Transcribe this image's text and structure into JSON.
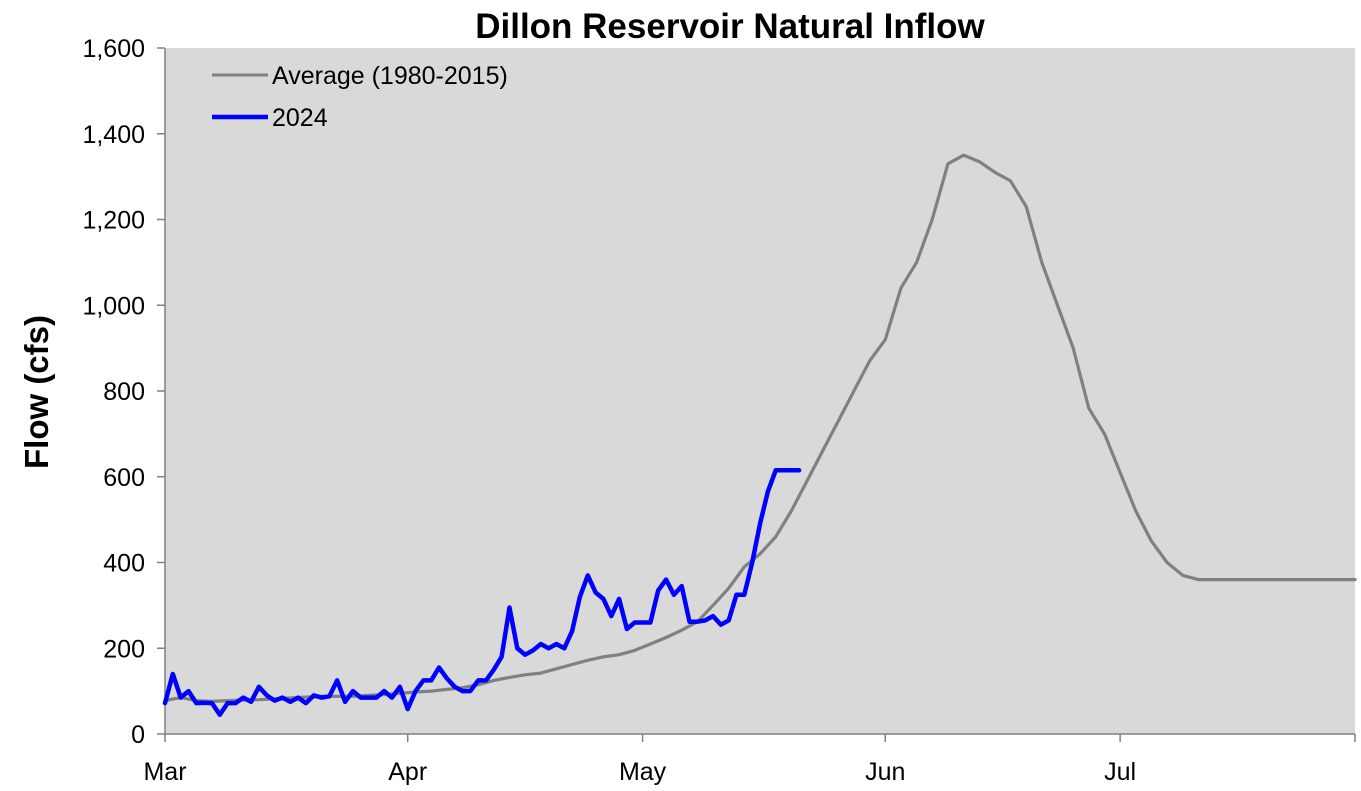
{
  "chart_data": {
    "type": "line",
    "title": "Dillon Reservoir Natural Inflow",
    "xlabel": "",
    "ylabel": "Flow (cfs)",
    "ylim": [
      0,
      1600
    ],
    "xlim": [
      "Mar 1",
      "Jul 31"
    ],
    "y_ticks": [
      "0",
      "200",
      "400",
      "600",
      "800",
      "1,000",
      "1,200",
      "1,400",
      "1,600"
    ],
    "x_ticks": [
      "Mar",
      "Apr",
      "May",
      "Jun",
      "Jul"
    ],
    "grid": false,
    "legend_position": "top-left",
    "colors": {
      "plot_bg": "#d9d9d9",
      "average": "#808080",
      "current": "#0000ff"
    },
    "series": [
      {
        "name": "Average (1980-2015)",
        "x_day_of_season": [
          1,
          3,
          5,
          7,
          9,
          11,
          13,
          15,
          17,
          19,
          21,
          23,
          25,
          27,
          29,
          31,
          33,
          35,
          37,
          39,
          41,
          43,
          45,
          47,
          49,
          51,
          53,
          55,
          57,
          59,
          61,
          63,
          65,
          67,
          69,
          71,
          73,
          75,
          77,
          79,
          81,
          83,
          85,
          87,
          89,
          91,
          93,
          95,
          97,
          99,
          101,
          103,
          105,
          107,
          109,
          111,
          113,
          115,
          117,
          119,
          121,
          123,
          125,
          127,
          129,
          131,
          133,
          135,
          137,
          139,
          141,
          143,
          145,
          147,
          149,
          151,
          153
        ],
        "values": [
          78,
          85,
          78,
          76,
          78,
          79,
          80,
          82,
          84,
          86,
          88,
          88,
          88,
          90,
          92,
          95,
          98,
          100,
          104,
          108,
          115,
          125,
          132,
          138,
          142,
          152,
          162,
          172,
          180,
          185,
          195,
          210,
          225,
          242,
          262,
          300,
          340,
          390,
          420,
          460,
          520,
          590,
          660,
          730,
          800,
          870,
          920,
          1040,
          1100,
          1200,
          1330,
          1350,
          1335,
          1310,
          1290,
          1230,
          1100,
          1000,
          900,
          760,
          700,
          610,
          520,
          450,
          400,
          370,
          360,
          360,
          360,
          360,
          360,
          360,
          360,
          360,
          360,
          360,
          360
        ]
      },
      {
        "name": "2024",
        "x_day_of_season": [
          1,
          2,
          3,
          4,
          5,
          6,
          7,
          8,
          9,
          10,
          11,
          12,
          13,
          14,
          15,
          16,
          17,
          18,
          19,
          20,
          21,
          22,
          23,
          24,
          25,
          26,
          27,
          28,
          29,
          30,
          31,
          32,
          33,
          34,
          35,
          36,
          37,
          38,
          39,
          40,
          41,
          42,
          43,
          44,
          45,
          46,
          47,
          48,
          49,
          50,
          51,
          52,
          53,
          54,
          55,
          56,
          57,
          58,
          59,
          60,
          61,
          62,
          63,
          64,
          65,
          66,
          67,
          68,
          69,
          70,
          71,
          72,
          73,
          74,
          75,
          76,
          77,
          78,
          79,
          80,
          81,
          82
        ],
        "values": [
          72,
          140,
          85,
          100,
          72,
          73,
          72,
          45,
          72,
          72,
          85,
          75,
          110,
          90,
          78,
          85,
          75,
          85,
          72,
          90,
          85,
          88,
          125,
          75,
          100,
          85,
          85,
          85,
          100,
          85,
          110,
          58,
          100,
          125,
          125,
          155,
          130,
          110,
          100,
          100,
          125,
          125,
          150,
          180,
          295,
          200,
          185,
          195,
          210,
          200,
          210,
          200,
          240,
          320,
          370,
          330,
          315,
          275,
          315,
          245,
          260,
          260,
          260,
          335,
          360,
          325,
          345,
          262,
          262,
          265,
          275,
          255,
          265,
          325,
          325,
          400,
          490,
          565,
          615,
          615,
          615,
          615
        ]
      }
    ]
  }
}
